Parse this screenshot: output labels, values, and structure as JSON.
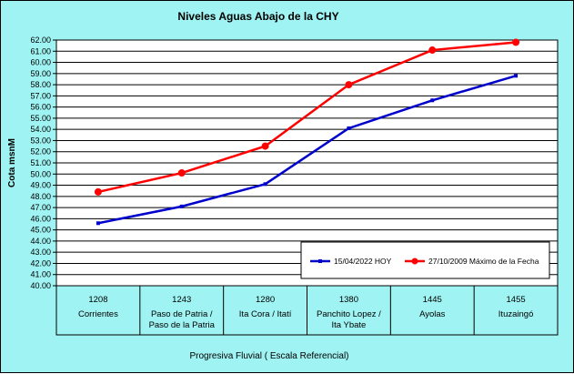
{
  "chart_data": {
    "type": "line",
    "title": "Niveles Aguas Abajo de la CHY",
    "ylabel": "Cota msnM",
    "xlabel": "Progresiva Fluvial ( Escala Referencial)",
    "ylim": [
      40.0,
      62.0
    ],
    "ystep": 1.0,
    "yticks": [
      "40.00",
      "41.00",
      "42.00",
      "43.00",
      "44.00",
      "45.00",
      "46.00",
      "47.00",
      "48.00",
      "49.00",
      "50.00",
      "51.00",
      "52.00",
      "53.00",
      "54.00",
      "55.00",
      "56.00",
      "57.00",
      "58.00",
      "59.00",
      "60.00",
      "61.00",
      "62.00"
    ],
    "grid": true,
    "legend_position": "bottom-right",
    "categories": [
      {
        "km": "1208",
        "name_line1": "Corrientes",
        "name_line2": ""
      },
      {
        "km": "1243",
        "name_line1": "Paso de Patria /",
        "name_line2": "Paso de la Patria"
      },
      {
        "km": "1280",
        "name_line1": "Ita Cora / Itatí",
        "name_line2": ""
      },
      {
        "km": "1380",
        "name_line1": "Panchito Lopez /",
        "name_line2": "Ita Ybate"
      },
      {
        "km": "1445",
        "name_line1": "Ayolas",
        "name_line2": ""
      },
      {
        "km": "1455",
        "name_line1": "Ituzaingó",
        "name_line2": ""
      }
    ],
    "series": [
      {
        "name": "15/04/2022 HOY",
        "color": "#0000cc",
        "marker": "small-square",
        "values": [
          45.6,
          47.1,
          49.1,
          54.1,
          56.6,
          58.8
        ]
      },
      {
        "name": "27/10/2009 Máximo de la Fecha",
        "color": "#ff0000",
        "marker": "circle",
        "values": [
          48.4,
          50.1,
          52.5,
          58.0,
          61.1,
          61.8
        ]
      }
    ],
    "colors": {
      "background": "#9ff3f2",
      "plot_area": "#ffffff",
      "grid": "#000000"
    }
  }
}
